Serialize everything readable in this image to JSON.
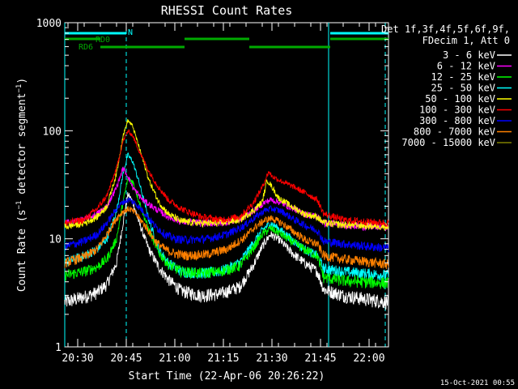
{
  "chart_data": {
    "type": "line",
    "title": "RHESSI Count Rates",
    "xlabel": "Start Time (22-Apr-06 20:26:22)",
    "ylabel": "Count Rate (s⁻¹ detector segment⁻¹)",
    "ylabel_main": "Count Rate (s",
    "ylabel_mid": " detector segment",
    "ylabel_end": ")",
    "ylabel_sup": "−1",
    "y_scale": "log",
    "ylim": [
      1,
      1000
    ],
    "xlim_minutes": [
      0,
      100
    ],
    "x_ticks": [
      {
        "t": 4,
        "label": "20:30"
      },
      {
        "t": 19,
        "label": "20:45"
      },
      {
        "t": 34,
        "label": "21:00"
      },
      {
        "t": 49,
        "label": "21:15"
      },
      {
        "t": 64,
        "label": "21:30"
      },
      {
        "t": 79,
        "label": "21:45"
      },
      {
        "t": 94,
        "label": "22:00"
      }
    ],
    "y_ticks": [
      {
        "v": 1,
        "label": "1"
      },
      {
        "v": 10,
        "label": "10"
      },
      {
        "v": 100,
        "label": "100"
      },
      {
        "v": 1000,
        "label": "1000"
      }
    ],
    "legend": {
      "position": "right",
      "header_line1": "Det 1f,3f,4f,5f,6f,9f,",
      "header_line2": "FDecim 1, Att 0"
    },
    "series": [
      {
        "name": "3 - 6 keV",
        "color": "#ffffff",
        "points": [
          [
            0,
            2.6
          ],
          [
            6,
            2.9
          ],
          [
            10,
            3.2
          ],
          [
            13,
            3.8
          ],
          [
            16,
            6
          ],
          [
            18,
            14
          ],
          [
            19.5,
            26
          ],
          [
            21,
            22
          ],
          [
            23,
            14
          ],
          [
            26,
            8
          ],
          [
            29,
            5.5
          ],
          [
            32,
            4.2
          ],
          [
            36,
            3.3
          ],
          [
            42,
            3.0
          ],
          [
            48,
            3.1
          ],
          [
            54,
            3.6
          ],
          [
            58,
            5.5
          ],
          [
            61,
            8.5
          ],
          [
            63.5,
            11
          ],
          [
            66,
            10
          ],
          [
            70,
            7.5
          ],
          [
            74,
            6
          ],
          [
            78,
            5
          ],
          [
            80,
            3.4
          ],
          [
            86,
            3.0
          ],
          [
            92,
            2.8
          ],
          [
            100,
            2.6
          ]
        ]
      },
      {
        "name": "6 - 12 keV",
        "color": "#ff00ff",
        "points": [
          [
            0,
            14
          ],
          [
            6,
            15
          ],
          [
            10,
            17
          ],
          [
            13,
            20
          ],
          [
            16,
            30
          ],
          [
            18,
            45
          ],
          [
            19.5,
            38
          ],
          [
            21,
            30
          ],
          [
            24,
            23
          ],
          [
            28,
            19
          ],
          [
            32,
            16
          ],
          [
            36,
            14.5
          ],
          [
            42,
            14
          ],
          [
            48,
            14
          ],
          [
            54,
            15
          ],
          [
            58,
            18
          ],
          [
            61,
            21
          ],
          [
            63.5,
            23
          ],
          [
            66,
            22
          ],
          [
            70,
            19.5
          ],
          [
            74,
            17
          ],
          [
            78,
            16
          ],
          [
            80,
            14
          ],
          [
            86,
            13.5
          ],
          [
            92,
            13
          ],
          [
            100,
            13
          ]
        ]
      },
      {
        "name": "12 - 25 keV",
        "color": "#00ff00",
        "points": [
          [
            0,
            4.6
          ],
          [
            6,
            5
          ],
          [
            10,
            5.5
          ],
          [
            13,
            6.5
          ],
          [
            16,
            10
          ],
          [
            18,
            22
          ],
          [
            19.5,
            36
          ],
          [
            21,
            34
          ],
          [
            23,
            22
          ],
          [
            26,
            12
          ],
          [
            29,
            7.5
          ],
          [
            32,
            5.8
          ],
          [
            36,
            5
          ],
          [
            42,
            4.8
          ],
          [
            48,
            5
          ],
          [
            54,
            5.6
          ],
          [
            58,
            8
          ],
          [
            61,
            11
          ],
          [
            63.5,
            12.5
          ],
          [
            66,
            11.5
          ],
          [
            70,
            9.5
          ],
          [
            74,
            8
          ],
          [
            78,
            7
          ],
          [
            80,
            4.4
          ],
          [
            86,
            4.1
          ],
          [
            92,
            4
          ],
          [
            100,
            3.9
          ]
        ]
      },
      {
        "name": "25 - 50 keV",
        "color": "#00ffff",
        "points": [
          [
            0,
            6
          ],
          [
            6,
            7
          ],
          [
            10,
            8
          ],
          [
            13,
            10
          ],
          [
            16,
            18
          ],
          [
            18,
            40
          ],
          [
            19.5,
            60
          ],
          [
            21,
            52
          ],
          [
            23,
            33
          ],
          [
            26,
            15
          ],
          [
            29,
            8
          ],
          [
            32,
            6
          ],
          [
            36,
            5
          ],
          [
            42,
            4.8
          ],
          [
            48,
            5
          ],
          [
            54,
            6
          ],
          [
            58,
            9
          ],
          [
            61,
            12
          ],
          [
            63.5,
            14
          ],
          [
            66,
            12.5
          ],
          [
            70,
            10
          ],
          [
            74,
            8
          ],
          [
            78,
            7
          ],
          [
            80,
            5.3
          ],
          [
            86,
            5
          ],
          [
            92,
            4.8
          ],
          [
            100,
            4.6
          ]
        ]
      },
      {
        "name": "50 - 100 keV",
        "color": "#ffff00",
        "points": [
          [
            0,
            13
          ],
          [
            6,
            14
          ],
          [
            10,
            16
          ],
          [
            13,
            20
          ],
          [
            16,
            40
          ],
          [
            18,
            90
          ],
          [
            19.5,
            125
          ],
          [
            21,
            110
          ],
          [
            23,
            70
          ],
          [
            26,
            35
          ],
          [
            29,
            22
          ],
          [
            32,
            17
          ],
          [
            36,
            14.5
          ],
          [
            42,
            14
          ],
          [
            48,
            14
          ],
          [
            54,
            15
          ],
          [
            58,
            18
          ],
          [
            61,
            22
          ],
          [
            62.5,
            35
          ],
          [
            63.5,
            32
          ],
          [
            66,
            24
          ],
          [
            70,
            20
          ],
          [
            74,
            17
          ],
          [
            78,
            16
          ],
          [
            80,
            14
          ],
          [
            86,
            13.5
          ],
          [
            92,
            13.3
          ],
          [
            100,
            13
          ]
        ]
      },
      {
        "name": "100 - 300 keV",
        "color": "#ff0000",
        "points": [
          [
            0,
            14
          ],
          [
            6,
            15
          ],
          [
            10,
            19
          ],
          [
            13,
            25
          ],
          [
            16,
            45
          ],
          [
            18,
            80
          ],
          [
            19.5,
            100
          ],
          [
            21,
            90
          ],
          [
            23,
            65
          ],
          [
            26,
            42
          ],
          [
            29,
            30
          ],
          [
            32,
            23
          ],
          [
            36,
            19
          ],
          [
            42,
            16
          ],
          [
            48,
            15
          ],
          [
            54,
            16
          ],
          [
            58,
            21
          ],
          [
            61,
            30
          ],
          [
            63,
            42
          ],
          [
            64,
            38
          ],
          [
            67,
            34
          ],
          [
            71,
            30
          ],
          [
            75,
            26
          ],
          [
            78,
            23
          ],
          [
            80,
            17
          ],
          [
            86,
            15
          ],
          [
            92,
            14.5
          ],
          [
            100,
            14
          ]
        ]
      },
      {
        "name": "300 - 800 keV",
        "color": "#0000ff",
        "points": [
          [
            0,
            8.5
          ],
          [
            6,
            9.5
          ],
          [
            10,
            11
          ],
          [
            13,
            14
          ],
          [
            16,
            19
          ],
          [
            18,
            22
          ],
          [
            20,
            23
          ],
          [
            22,
            21
          ],
          [
            25,
            17
          ],
          [
            28,
            13
          ],
          [
            31,
            11
          ],
          [
            34,
            10
          ],
          [
            38,
            9.8
          ],
          [
            44,
            10
          ],
          [
            50,
            11
          ],
          [
            55,
            13
          ],
          [
            59,
            16
          ],
          [
            62,
            18.5
          ],
          [
            64,
            19
          ],
          [
            67,
            18
          ],
          [
            71,
            15
          ],
          [
            75,
            13
          ],
          [
            78,
            12
          ],
          [
            80,
            9.5
          ],
          [
            86,
            9
          ],
          [
            92,
            8.6
          ],
          [
            100,
            8.2
          ]
        ]
      },
      {
        "name": "800 - 7000 keV",
        "color": "#ff8000",
        "points": [
          [
            0,
            6
          ],
          [
            6,
            6.8
          ],
          [
            10,
            8
          ],
          [
            13,
            11
          ],
          [
            16,
            15.5
          ],
          [
            18,
            18
          ],
          [
            20,
            19
          ],
          [
            22,
            17
          ],
          [
            25,
            13
          ],
          [
            28,
            9.5
          ],
          [
            31,
            8
          ],
          [
            34,
            7.3
          ],
          [
            38,
            7
          ],
          [
            44,
            7.2
          ],
          [
            50,
            8
          ],
          [
            55,
            10
          ],
          [
            59,
            13
          ],
          [
            62,
            15
          ],
          [
            64,
            15.5
          ],
          [
            67,
            14
          ],
          [
            71,
            11.5
          ],
          [
            75,
            9.5
          ],
          [
            78,
            9
          ],
          [
            80,
            7
          ],
          [
            86,
            6.5
          ],
          [
            92,
            6.2
          ],
          [
            100,
            5.8
          ]
        ]
      },
      {
        "name": "7000 - 15000 keV",
        "color": "#808000",
        "points": []
      }
    ],
    "attenuator_bars": {
      "rd0_label": "RD0",
      "rd6_label": "RD6",
      "n_label": "N",
      "color_attenuator": "#00aa00",
      "color_night": "#00ffff",
      "night_segments": [
        [
          0,
          19
        ],
        [
          82,
          100
        ]
      ],
      "upper_green": [
        [
          0,
          11
        ],
        [
          37,
          57
        ],
        [
          82,
          100
        ]
      ],
      "lower_green": [
        [
          11,
          37
        ],
        [
          57,
          82
        ]
      ]
    },
    "vertical_markers": {
      "solid": [
        0,
        81.5
      ],
      "dashed": [
        19,
        99
      ]
    },
    "footer_timestamp": "15-Oct-2021 00:55"
  }
}
